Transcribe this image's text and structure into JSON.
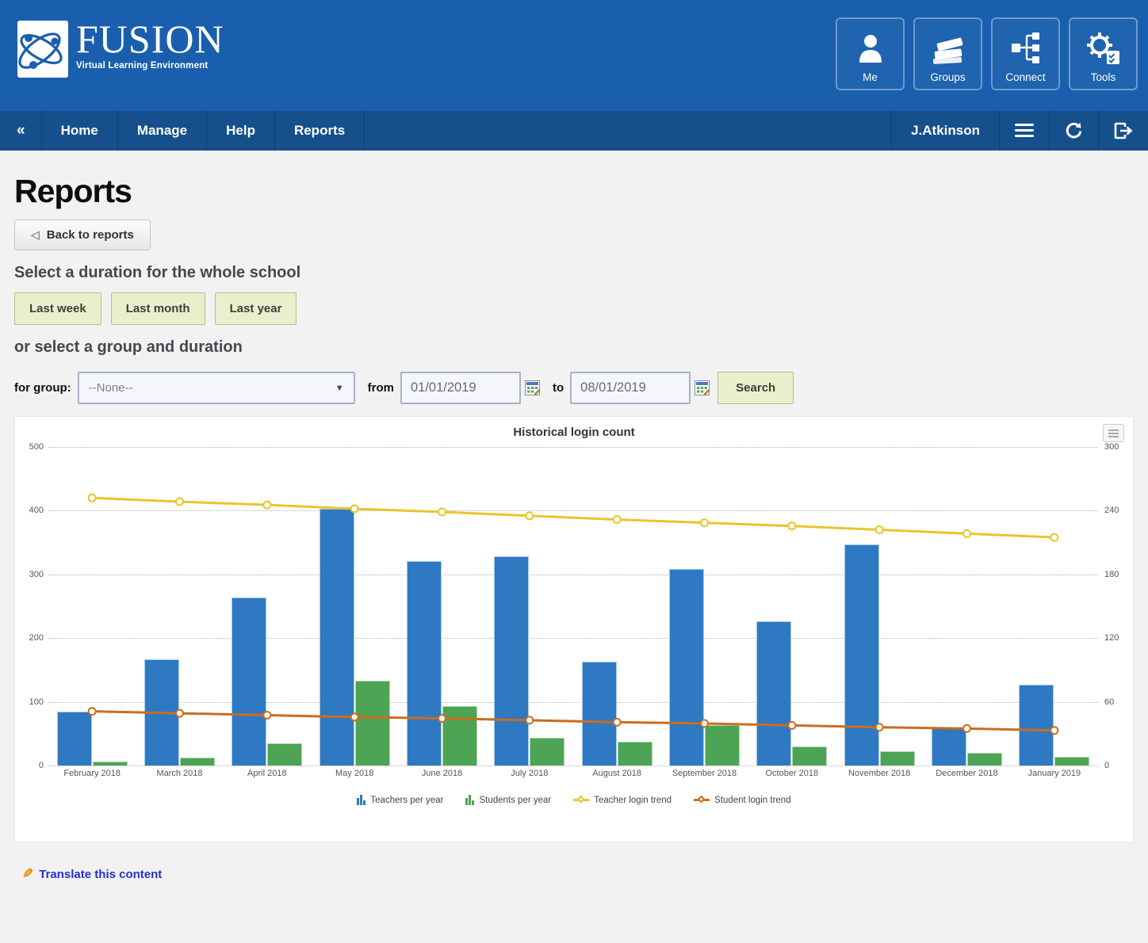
{
  "header": {
    "logo": {
      "title": "FUSION",
      "tagline": "Virtual Learning Environment"
    },
    "apps": [
      {
        "label": "Me",
        "icon": "user-icon"
      },
      {
        "label": "Groups",
        "icon": "books-icon"
      },
      {
        "label": "Connect",
        "icon": "org-chart-icon"
      },
      {
        "label": "Tools",
        "icon": "tools-icon"
      }
    ]
  },
  "navbar": {
    "collapse_icon": "«",
    "items": [
      {
        "label": "Home"
      },
      {
        "label": "Manage"
      },
      {
        "label": "Help"
      },
      {
        "label": "Reports"
      }
    ],
    "user": "J.Atkinson",
    "icons": [
      "menu-icon",
      "refresh-icon",
      "logout-icon"
    ]
  },
  "page": {
    "title": "Reports",
    "back_button": "Back to reports",
    "duration_prompt": "Select a duration for the whole school",
    "duration_buttons": [
      {
        "label": "Last week"
      },
      {
        "label": "Last month"
      },
      {
        "label": "Last year"
      }
    ],
    "group_prompt": "or select a group and duration",
    "form": {
      "group_label": "for group:",
      "group_value": "--None--",
      "from_label": "from",
      "from_value": "01/01/2019",
      "to_label": "to",
      "to_value": "08/01/2019",
      "search_label": "Search"
    },
    "translate_link": "Translate this content"
  },
  "chart_data": {
    "type": "bar",
    "subtype": "grouped bars with two trend lines",
    "title": "Historical login count",
    "categories": [
      "February 2018",
      "March 2018",
      "April 2018",
      "May 2018",
      "June 2018",
      "July 2018",
      "August 2018",
      "September 2018",
      "October 2018",
      "November 2018",
      "December 2018",
      "January 2019"
    ],
    "series": [
      {
        "name": "Teachers per year",
        "type": "bar",
        "color": "#2f79c2",
        "border": "#a5cbe9",
        "values": [
          84,
          167,
          264,
          403,
          321,
          328,
          163,
          308,
          226,
          347,
          58,
          127
        ]
      },
      {
        "name": "Students per year",
        "type": "bar",
        "color": "#4da454",
        "border": "#aed7ae",
        "values": [
          6,
          12,
          35,
          133,
          93,
          43,
          37,
          64,
          30,
          22,
          20,
          14
        ]
      },
      {
        "name": "Teacher login trend",
        "type": "line",
        "color": "#e9c52c",
        "visual_axis": "right",
        "values": [
          420,
          414,
          409,
          403,
          398,
          392,
          386,
          381,
          376,
          370,
          364,
          358
        ]
      },
      {
        "name": "Student login trend",
        "type": "line",
        "color": "#cc6c1d",
        "visual_axis": "right",
        "values": [
          85,
          82,
          79,
          76,
          74,
          71,
          68,
          66,
          63,
          60,
          58,
          55
        ]
      }
    ],
    "note": "line values recorded on the left-axis pixel scale as plotted",
    "left_axis": {
      "ticks": [
        0,
        100,
        200,
        300,
        400,
        500
      ],
      "ylim": [
        0,
        500
      ]
    },
    "right_axis": {
      "ticks": [
        0,
        60,
        120,
        180,
        240,
        300
      ],
      "ylim": [
        0,
        300
      ]
    },
    "xlabel": "",
    "ylabel": "",
    "grid": "dotted horizontal gridlines",
    "legend_position": "bottom"
  }
}
